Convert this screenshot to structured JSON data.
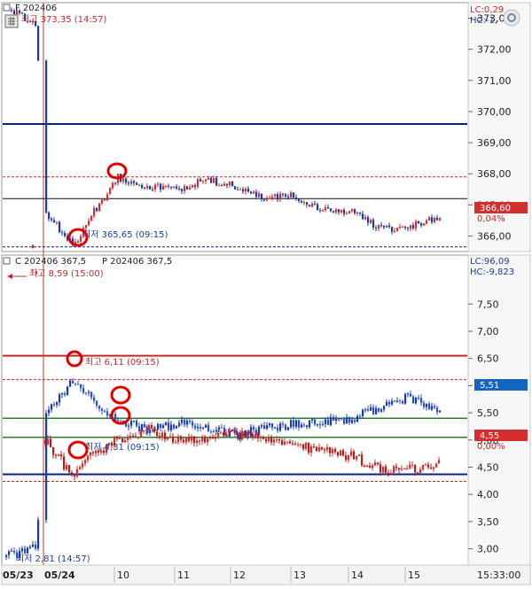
{
  "colors": {
    "up": "#d32f2f",
    "down": "#1a3aa8",
    "navy": "#0a1e8c",
    "darkred": "#c62828",
    "green": "#2e7d32",
    "accent_blue": "#1565c0"
  },
  "top_panel": {
    "label": "F 202406",
    "lc": "LC:0,29",
    "hc": "HC:-1,",
    "high_label": "최고 373,35 (14:57)",
    "low_label": "최저 365,65 (09:15)",
    "current_price": "366,60",
    "current_change": "0,04%",
    "y_ticks": [
      "373,00",
      "372,00",
      "371,00",
      "370,00",
      "369,00",
      "368,00",
      "367,00",
      "366,00"
    ]
  },
  "bottom_panel": {
    "label_c": "C 202406 367,5",
    "label_p": "P 202406 367,5",
    "lc": "LC:96,09",
    "hc": "HC:-9,823",
    "high_label_c": "최고 8,59 (15:00)",
    "high_label_day": "최고 6,11 (09:15)",
    "low_label_day": "최저 4,31 (09:15)",
    "low_label_c": "최저 2,81 (14:57)",
    "current_call": "5,51",
    "current_put": "4,55",
    "current_pct": "0,00%",
    "y_ticks": [
      "8,00",
      "7,50",
      "7,00",
      "6,50",
      "6,00",
      "5,50",
      "5,00",
      "4,50",
      "4,00",
      "3,50",
      "3,00"
    ]
  },
  "x_axis": {
    "labels": [
      "05/23",
      "05/24",
      "10",
      "11",
      "12",
      "13",
      "14",
      "15"
    ],
    "time_readout": "15:33:00"
  },
  "chart_data": [
    {
      "type": "line",
      "title": "F 202406",
      "ylim": [
        365.5,
        373.5
      ],
      "reference_lines": {
        "navy": 369.6,
        "black": 367.2,
        "dashed_high": 367.9,
        "dashed_low": 365.65
      },
      "series": [
        {
          "name": "F 202406",
          "x": [
            "05/23 14:50",
            "05/23 15:00",
            "05/24 09:00",
            "09:15",
            "09:30",
            "09:45",
            "10:00",
            "10:30",
            "11:00",
            "11:30",
            "12:00",
            "12:30",
            "13:00",
            "13:30",
            "14:00",
            "14:30",
            "15:00",
            "15:30"
          ],
          "values": [
            373.3,
            372.8,
            366.8,
            365.65,
            366.6,
            367.3,
            367.9,
            367.6,
            367.5,
            367.8,
            367.6,
            367.2,
            367.3,
            366.8,
            366.8,
            366.2,
            366.3,
            366.6
          ]
        }
      ]
    },
    {
      "type": "line",
      "title": "C 202406 367,5 / P 202406 367,5",
      "ylim": [
        2.7,
        8.4
      ],
      "reference_lines": {
        "red_solid": 6.55,
        "dashed_high": 6.11,
        "green_upper": 5.4,
        "green_lower": 5.05,
        "navy": 4.37,
        "dashed_low": 4.24
      },
      "series": [
        {
          "name": "C 202406 367,5",
          "x": [
            "05/23 14:50",
            "05/23 15:00",
            "05/24 09:00",
            "09:15",
            "09:30",
            "10:00",
            "10:30",
            "11:00",
            "12:00",
            "13:00",
            "14:00",
            "14:30",
            "15:00",
            "15:30"
          ],
          "values": [
            2.85,
            3.05,
            5.5,
            6.11,
            5.8,
            5.35,
            5.2,
            5.3,
            5.1,
            5.3,
            5.4,
            5.6,
            5.8,
            5.51
          ]
        },
        {
          "name": "P 202406 367,5",
          "x": [
            "05/23 14:50",
            "05/23 15:00",
            "05/24 09:00",
            "09:15",
            "09:30",
            "10:00",
            "10:30",
            "11:00",
            "12:00",
            "13:00",
            "14:00",
            "14:30",
            "15:00",
            "15:30"
          ],
          "values": [
            8.59,
            8.1,
            5.0,
            4.31,
            4.7,
            5.0,
            5.2,
            5.0,
            5.1,
            4.9,
            4.7,
            4.45,
            4.45,
            4.55
          ]
        }
      ]
    }
  ]
}
